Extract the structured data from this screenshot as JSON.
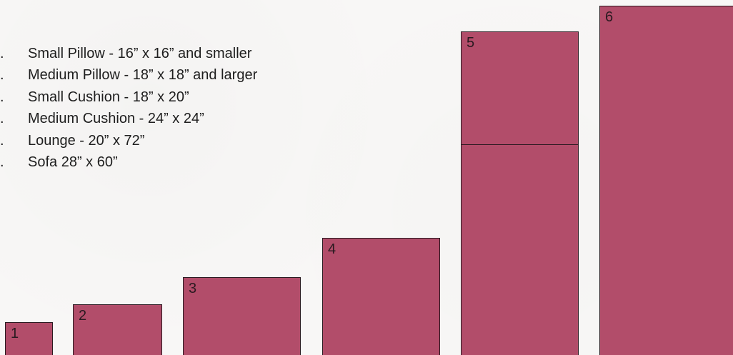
{
  "legend": {
    "items": [
      {
        "bullet": ".",
        "text": "Small Pillow - 16” x 16” and smaller"
      },
      {
        "bullet": ".",
        "text": "Medium Pillow - 18” x 18” and larger"
      },
      {
        "bullet": ".",
        "text": "Small Cushion - 18” x 20”"
      },
      {
        "bullet": ".",
        "text": "Medium Cushion - 24” x 24”"
      },
      {
        "bullet": ".",
        "text": "Lounge - 20” x 72”"
      },
      {
        "bullet": ".",
        "text": "Sofa 28” x 60”"
      }
    ]
  },
  "boxes": [
    {
      "label": "1"
    },
    {
      "label": "2"
    },
    {
      "label": "3"
    },
    {
      "label": "4"
    },
    {
      "label": "5"
    },
    {
      "label": "6"
    }
  ],
  "colors": {
    "box_fill": "#b24d6a",
    "background": "#f8f7f6"
  }
}
